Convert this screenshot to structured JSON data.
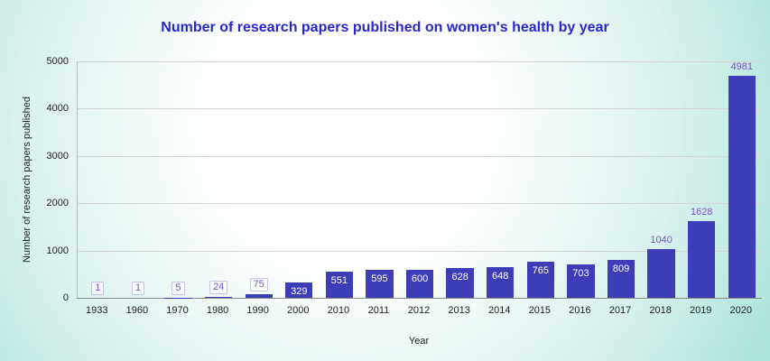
{
  "chart_data": {
    "type": "bar",
    "title": "Number of research papers published on women's health by year",
    "xlabel": "Year",
    "ylabel": "Number of research papers published",
    "categories": [
      "1933",
      "1960",
      "1970",
      "1980",
      "1990",
      "2000",
      "2010",
      "2011",
      "2012",
      "2013",
      "2014",
      "2015",
      "2016",
      "2017",
      "2018",
      "2019",
      "2020"
    ],
    "values": [
      1,
      1,
      5,
      24,
      75,
      329,
      551,
      595,
      600,
      628,
      648,
      765,
      703,
      809,
      1040,
      1628,
      4981
    ],
    "ylim": [
      0,
      5000
    ],
    "yticks": [
      0,
      1000,
      2000,
      3000,
      4000,
      5000
    ],
    "grid": true,
    "legend": "none",
    "colors": {
      "bar": "#3d3db8",
      "title": "#2727cc",
      "label_outside": "#7b52c8",
      "label_inside": "#ffffff"
    }
  }
}
